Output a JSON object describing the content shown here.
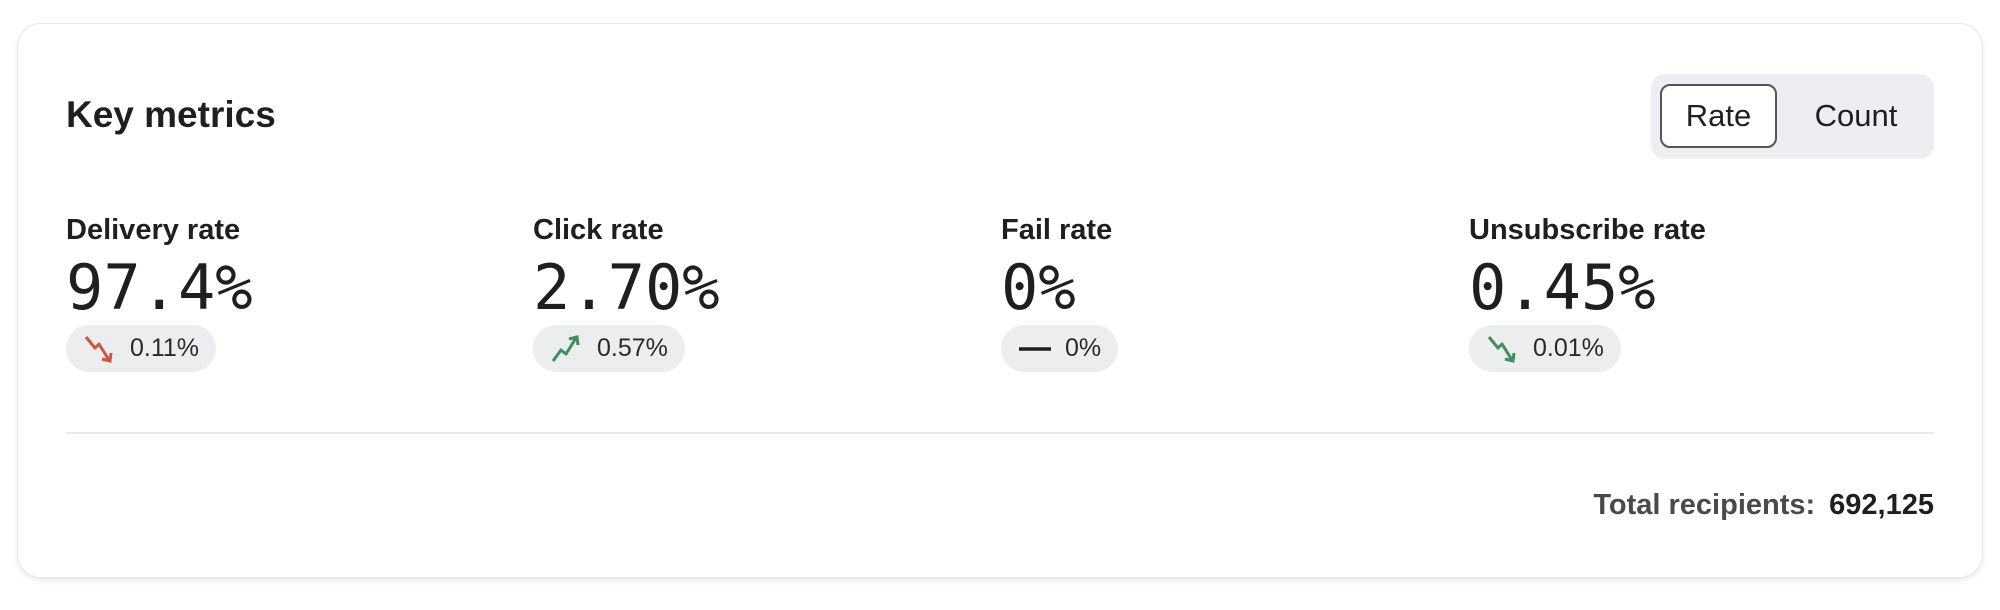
{
  "card": {
    "title": "Key metrics",
    "toggle": {
      "options": [
        "Rate",
        "Count"
      ],
      "selected": "Rate"
    },
    "metrics": [
      {
        "label": "Delivery rate",
        "value": "97.4%",
        "change": "0.11%",
        "trend": "down",
        "trend_icon": "trend-down-icon",
        "trend_color": "#d0533f"
      },
      {
        "label": "Click rate",
        "value": "2.70%",
        "change": "0.57%",
        "trend": "up",
        "trend_icon": "trend-up-icon",
        "trend_color": "#3f8f5a"
      },
      {
        "label": "Fail rate",
        "value": "0%",
        "change": "0%",
        "trend": "flat",
        "trend_icon": "dash-icon",
        "trend_color": "#1f1f1f"
      },
      {
        "label": "Unsubscribe rate",
        "value": "0.45%",
        "change": "0.01%",
        "trend": "down",
        "trend_icon": "trend-down-icon",
        "trend_color": "#3f8f5a"
      }
    ],
    "total": {
      "label": "Total recipients:",
      "value": "692,125"
    }
  }
}
